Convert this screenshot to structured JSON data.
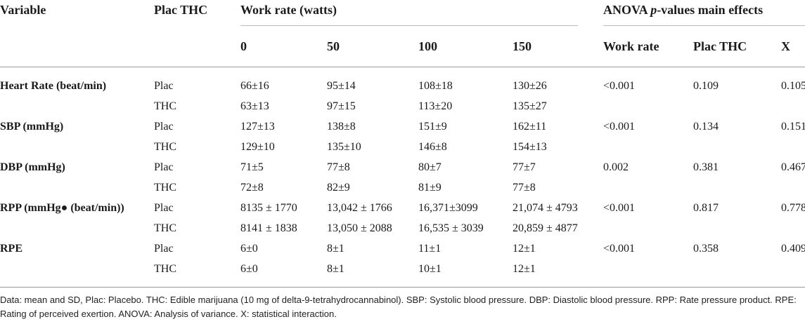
{
  "header": {
    "variable": "Variable",
    "plac_thc": "Plac THC",
    "work_rate": "Work rate (watts)",
    "anova_prefix": "ANOVA ",
    "anova_p": "p",
    "anova_suffix": "-values main effects",
    "wr_0": "0",
    "wr_50": "50",
    "wr_100": "100",
    "wr_150": "150",
    "main_work_rate": "Work rate",
    "main_plac_thc": "Plac THC",
    "main_x": "X"
  },
  "rows": [
    {
      "variable": "Heart Rate (beat/min)",
      "cond": "Plac",
      "v0": "66±16",
      "v50": "95±14",
      "v100": "108±18",
      "v150": "130±26",
      "p_wr": "<0.001",
      "p_thc": "0.109",
      "p_x": "0.105"
    },
    {
      "variable": "",
      "cond": "THC",
      "v0": "63±13",
      "v50": "97±15",
      "v100": "113±20",
      "v150": "135±27",
      "p_wr": "",
      "p_thc": "",
      "p_x": ""
    },
    {
      "variable": "SBP (mmHg)",
      "cond": "Plac",
      "v0": "127±13",
      "v50": "138±8",
      "v100": "151±9",
      "v150": "162±11",
      "p_wr": "<0.001",
      "p_thc": "0.134",
      "p_x": "0.151"
    },
    {
      "variable": "",
      "cond": "THC",
      "v0": "129±10",
      "v50": "135±10",
      "v100": "146±8",
      "v150": "154±13",
      "p_wr": "",
      "p_thc": "",
      "p_x": ""
    },
    {
      "variable": "DBP (mmHg)",
      "cond": "Plac",
      "v0": "71±5",
      "v50": "77±8",
      "v100": "80±7",
      "v150": "77±7",
      "p_wr": "0.002",
      "p_thc": "0.381",
      "p_x": "0.467"
    },
    {
      "variable": "",
      "cond": "THC",
      "v0": "72±8",
      "v50": "82±9",
      "v100": "81±9",
      "v150": "77±8",
      "p_wr": "",
      "p_thc": "",
      "p_x": ""
    },
    {
      "variable": "RPP (mmHg● (beat/min))",
      "cond": "Plac",
      "v0": "8135 ± 1770",
      "v50": "13,042 ± 1766",
      "v100": "16,371±3099",
      "v150": "21,074 ± 4793",
      "p_wr": "<0.001",
      "p_thc": "0.817",
      "p_x": "0.778"
    },
    {
      "variable": "",
      "cond": "THC",
      "v0": "8141 ± 1838",
      "v50": "13,050 ± 2088",
      "v100": "16,535 ± 3039",
      "v150": "20,859 ± 4877",
      "p_wr": "",
      "p_thc": "",
      "p_x": ""
    },
    {
      "variable": "RPE",
      "cond": "Plac",
      "v0": "6±0",
      "v50": "8±1",
      "v100": "11±1",
      "v150": "12±1",
      "p_wr": "<0.001",
      "p_thc": "0.358",
      "p_x": "0.409"
    },
    {
      "variable": "",
      "cond": "THC",
      "v0": "6±0",
      "v50": "8±1",
      "v100": "10±1",
      "v150": "12±1",
      "p_wr": "",
      "p_thc": "",
      "p_x": ""
    }
  ],
  "footnote": "Data: mean and SD, Plac: Placebo. THC: Edible marijuana (10 mg of delta-9-tetrahydrocannabinol). SBP: Systolic blood pressure. DBP: Diastolic blood pressure. RPP: Rate pressure product. RPE: Rating of perceived exertion. ANOVA: Analysis of variance. X: statistical interaction."
}
